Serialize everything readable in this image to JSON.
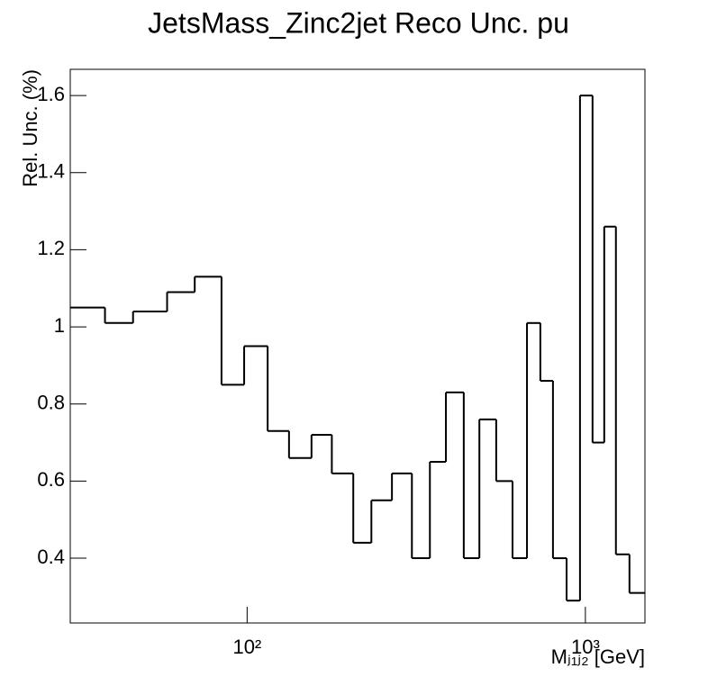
{
  "chart_data": {
    "type": "histogram",
    "title": "JetsMass_Zinc2jet Reco Unc. pu",
    "ylabel": "Rel. Unc. (%)",
    "xlabel": "Mⱼ₁ⱼ₂ [GeV]",
    "xscale": "log",
    "bins": [
      30,
      38,
      46,
      58,
      70,
      84,
      98,
      115,
      133,
      155,
      178,
      206,
      233,
      268,
      307,
      347,
      387,
      437,
      486,
      545,
      609,
      672,
      736,
      802,
      880,
      964,
      1050,
      1137,
      1231,
      1350,
      1500
    ],
    "values": [
      1.05,
      1.01,
      1.04,
      1.09,
      1.13,
      0.85,
      0.95,
      0.73,
      0.66,
      0.72,
      0.62,
      0.44,
      0.55,
      0.62,
      0.4,
      0.65,
      0.83,
      0.4,
      0.76,
      0.6,
      0.4,
      1.01,
      0.86,
      0.4,
      0.29,
      1.6,
      0.7,
      1.26,
      0.41,
      0.31
    ],
    "color": "#000000",
    "xlim": [
      30,
      1500
    ],
    "ylim": [
      0.232,
      1.668
    ],
    "xticks": [
      {
        "value": 100,
        "label": "10²"
      },
      {
        "value": 1000,
        "label": "10³"
      }
    ],
    "yticks": [
      0.4,
      0.6,
      0.8,
      1,
      1.2,
      1.4,
      1.6
    ]
  }
}
